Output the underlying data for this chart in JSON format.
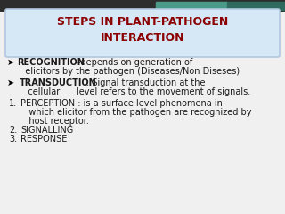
{
  "title_line1": "STEPS IN PLANT-PATHOGEN",
  "title_line2": "INTERACTION",
  "title_color": "#8B0000",
  "title_bg_color": "#d6e8f5",
  "title_border_color": "#b0c8e0",
  "bg_color": "#f0f0f0",
  "bullet1_bold": "RECOGNITION",
  "bullet1_normal": "-depends on generation of",
  "bullet1_line2": "   elicitors by the pathogen (Diseases/Non Diseses)",
  "bullet2_bold": "TRANSDUCTION",
  "bullet2_normal": ": Signal transduction at the",
  "bullet2_line2": "   cellular      level refers to the movement of signals.",
  "item1_line1": "PERCEPTION : is a surface level phenomena in",
  "item1_line2": "   which elicitor from the pathogen are recognized by",
  "item1_line3": "   host receptor.",
  "item2": "SIGNALLING",
  "item3": "RESPONSE",
  "text_color": "#1a1a1a",
  "bold_color": "#1a1a1a",
  "top_bg_color": "#2d2d2d",
  "teal_color": "#2e6b5e",
  "teal_light_color": "#4a9a8a"
}
